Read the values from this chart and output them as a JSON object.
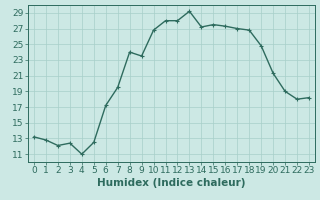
{
  "xlabel": "Humidex (Indice chaleur)",
  "x_values": [
    0,
    1,
    2,
    3,
    4,
    5,
    6,
    7,
    8,
    9,
    10,
    11,
    12,
    13,
    14,
    15,
    16,
    17,
    18,
    19,
    20,
    21,
    22,
    23
  ],
  "y_values": [
    13.2,
    12.8,
    12.1,
    12.4,
    11.0,
    12.5,
    17.2,
    19.5,
    24.0,
    23.5,
    26.8,
    28.0,
    28.0,
    29.2,
    27.2,
    27.5,
    27.3,
    27.0,
    26.8,
    24.8,
    21.3,
    19.0,
    18.0,
    18.2
  ],
  "line_color": "#2e6b5e",
  "marker": "+",
  "marker_size": 3.0,
  "bg_color": "#cce8e4",
  "grid_color": "#a8cfc9",
  "ylim": [
    10,
    30
  ],
  "yticks": [
    11,
    13,
    15,
    17,
    19,
    21,
    23,
    25,
    27,
    29
  ],
  "xticks": [
    0,
    1,
    2,
    3,
    4,
    5,
    6,
    7,
    8,
    9,
    10,
    11,
    12,
    13,
    14,
    15,
    16,
    17,
    18,
    19,
    20,
    21,
    22,
    23
  ],
  "xlabel_fontsize": 7.5,
  "tick_fontsize": 6.5,
  "line_width": 1.0
}
